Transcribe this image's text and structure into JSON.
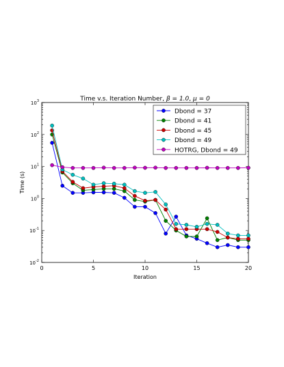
{
  "chart_data": {
    "type": "line",
    "title": "Time v.s. Iteration Number, ",
    "title_math": {
      "beta": "β = 1.0",
      "mu": "μ = 0"
    },
    "xlabel": "Iteration",
    "ylabel": "Time (s)",
    "xlim": [
      0,
      20
    ],
    "ylim_log10": [
      -2,
      3
    ],
    "yscale": "log",
    "x_ticks": [
      0,
      5,
      10,
      15,
      20
    ],
    "x_tick_labels": [
      "0",
      "5",
      "10",
      "15",
      "20"
    ],
    "y_tick_exponents": [
      -2,
      -1,
      0,
      1,
      2,
      3
    ],
    "y_tick_base": "10",
    "legend_position": "top-right",
    "series": [
      {
        "name": "Dbond = 37",
        "color": "#0000ff",
        "x": [
          1,
          2,
          3,
          4,
          5,
          6,
          7,
          8,
          9,
          10,
          11,
          12,
          13,
          14,
          15,
          16,
          17,
          18,
          19,
          20
        ],
        "values": [
          55,
          2.5,
          1.5,
          1.5,
          1.55,
          1.55,
          1.5,
          1.05,
          0.55,
          0.55,
          0.35,
          0.08,
          0.27,
          0.07,
          0.055,
          0.04,
          0.03,
          0.035,
          0.03,
          0.03
        ]
      },
      {
        "name": "Dbond = 41",
        "color": "#008000",
        "x": [
          1,
          2,
          3,
          4,
          5,
          6,
          7,
          8,
          9,
          10,
          11,
          12,
          13,
          14,
          15,
          16,
          17,
          18,
          19,
          20
        ],
        "values": [
          100,
          6.5,
          3.0,
          1.8,
          1.9,
          2.0,
          2.0,
          1.7,
          0.9,
          0.8,
          0.9,
          0.2,
          0.1,
          0.065,
          0.065,
          0.24,
          0.05,
          0.06,
          0.05,
          0.05
        ]
      },
      {
        "name": "Dbond = 45",
        "color": "#cc0000",
        "x": [
          1,
          2,
          3,
          4,
          5,
          6,
          7,
          8,
          9,
          10,
          11,
          12,
          13,
          14,
          15,
          16,
          17,
          18,
          19,
          20
        ],
        "values": [
          135,
          7.0,
          3.3,
          2.1,
          2.3,
          2.4,
          2.5,
          2.1,
          1.2,
          0.85,
          0.9,
          0.45,
          0.11,
          0.11,
          0.11,
          0.11,
          0.09,
          0.06,
          0.055,
          0.055
        ]
      },
      {
        "name": "Dbond = 49",
        "color": "#00bfbf",
        "x": [
          1,
          2,
          3,
          4,
          5,
          6,
          7,
          8,
          9,
          10,
          11,
          12,
          13,
          14,
          15,
          16,
          17,
          18,
          19,
          20
        ],
        "values": [
          190,
          8.0,
          5.5,
          4.2,
          2.7,
          3.0,
          2.9,
          2.7,
          1.7,
          1.5,
          1.6,
          0.65,
          0.16,
          0.15,
          0.13,
          0.16,
          0.15,
          0.08,
          0.07,
          0.07
        ]
      },
      {
        "name": "HOTRG, Dbond = 49",
        "color": "#bf00bf",
        "x": [
          1,
          2,
          3,
          4,
          5,
          6,
          7,
          8,
          9,
          10,
          11,
          12,
          13,
          14,
          15,
          16,
          17,
          18,
          19,
          20
        ],
        "values": [
          11,
          9.5,
          9.0,
          9.0,
          9.0,
          9.2,
          9.0,
          9.0,
          9.2,
          9.1,
          9.2,
          9.0,
          9.0,
          9.0,
          9.0,
          9.1,
          9.0,
          9.0,
          9.0,
          9.1
        ]
      }
    ]
  }
}
